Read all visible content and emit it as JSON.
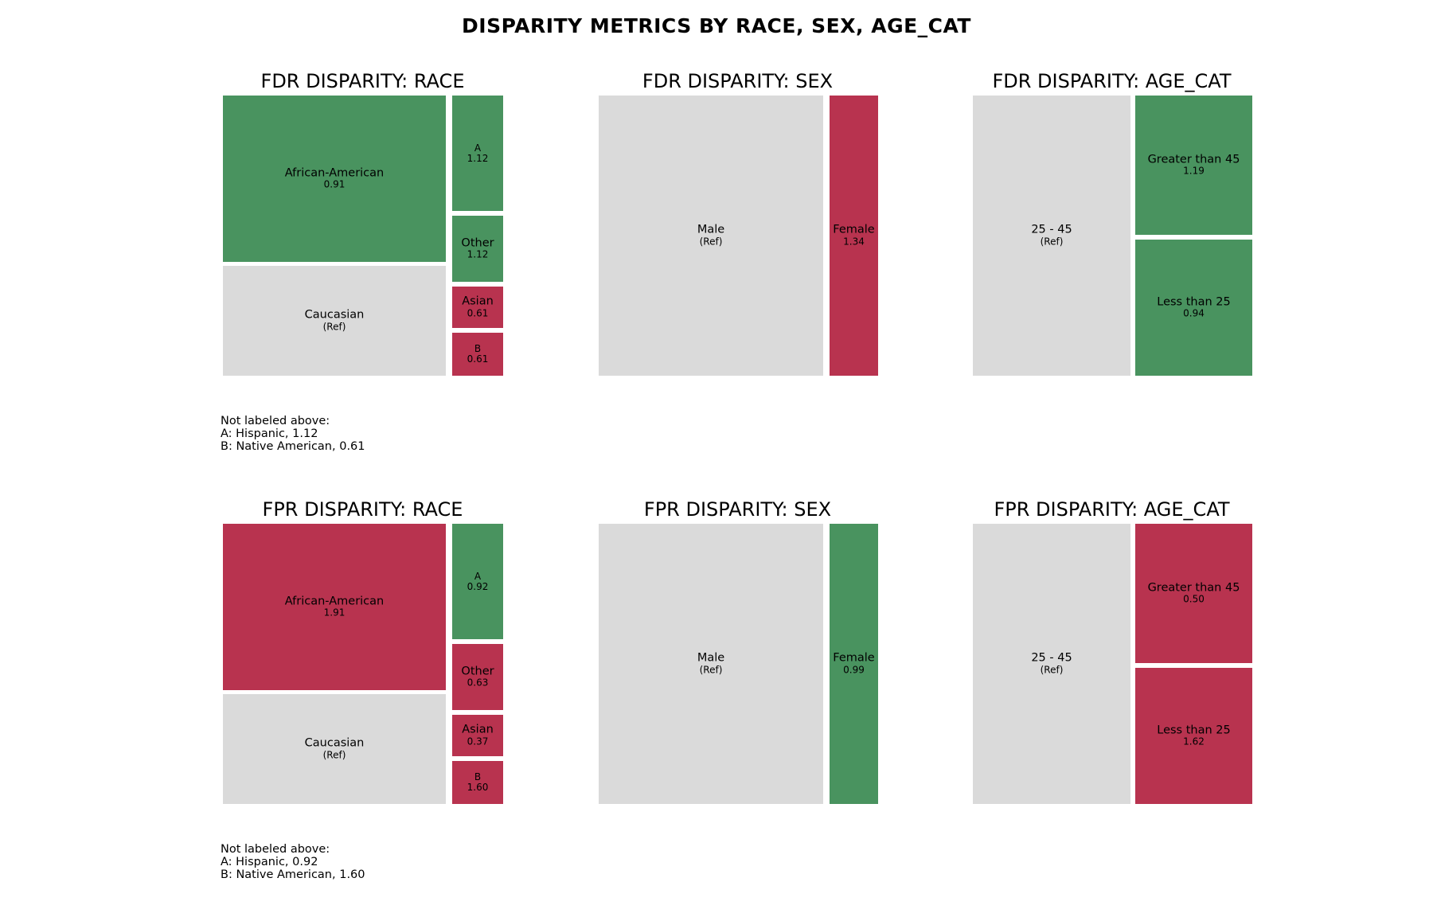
{
  "title": "DISPARITY METRICS BY RACE, SEX, AGE_CAT",
  "colors": {
    "reference": "#dadada",
    "better": "#49935f",
    "worse": "#b8334f",
    "text": "#000000"
  },
  "chart_data": [
    {
      "type": "treemap",
      "title": "FDR DISPARITY: RACE",
      "tiles": [
        {
          "label": "African-American",
          "value_label": "0.91",
          "value": 0.91,
          "status": "better"
        },
        {
          "label": "Caucasian",
          "value_label": "(Ref)",
          "value": 1.0,
          "status": "reference"
        },
        {
          "label": "A",
          "value_label": "1.12",
          "value": 1.12,
          "status": "better"
        },
        {
          "label": "Other",
          "value_label": "1.12",
          "value": 1.12,
          "status": "better"
        },
        {
          "label": "Asian",
          "value_label": "0.61",
          "value": 0.61,
          "status": "worse"
        },
        {
          "label": "B",
          "value_label": "0.61",
          "value": 0.61,
          "status": "worse"
        }
      ],
      "note": [
        "Not labeled above:",
        "A: Hispanic, 1.12",
        "B: Native American, 0.61"
      ]
    },
    {
      "type": "treemap",
      "title": "FDR DISPARITY: SEX",
      "tiles": [
        {
          "label": "Male",
          "value_label": "(Ref)",
          "value": 1.0,
          "status": "reference"
        },
        {
          "label": "Female",
          "value_label": "1.34",
          "value": 1.34,
          "status": "worse"
        }
      ],
      "note": []
    },
    {
      "type": "treemap",
      "title": "FDR DISPARITY: AGE_CAT",
      "tiles": [
        {
          "label": "25 - 45",
          "value_label": "(Ref)",
          "value": 1.0,
          "status": "reference"
        },
        {
          "label": "Greater than 45",
          "value_label": "1.19",
          "value": 1.19,
          "status": "better"
        },
        {
          "label": "Less than 25",
          "value_label": "0.94",
          "value": 0.94,
          "status": "better"
        }
      ],
      "note": []
    },
    {
      "type": "treemap",
      "title": "FPR DISPARITY: RACE",
      "tiles": [
        {
          "label": "African-American",
          "value_label": "1.91",
          "value": 1.91,
          "status": "worse"
        },
        {
          "label": "Caucasian",
          "value_label": "(Ref)",
          "value": 1.0,
          "status": "reference"
        },
        {
          "label": "A",
          "value_label": "0.92",
          "value": 0.92,
          "status": "better"
        },
        {
          "label": "Other",
          "value_label": "0.63",
          "value": 0.63,
          "status": "worse"
        },
        {
          "label": "Asian",
          "value_label": "0.37",
          "value": 0.37,
          "status": "worse"
        },
        {
          "label": "B",
          "value_label": "1.60",
          "value": 1.6,
          "status": "worse"
        }
      ],
      "note": [
        "Not labeled above:",
        "A: Hispanic, 0.92",
        "B: Native American, 1.60"
      ]
    },
    {
      "type": "treemap",
      "title": "FPR DISPARITY: SEX",
      "tiles": [
        {
          "label": "Male",
          "value_label": "(Ref)",
          "value": 1.0,
          "status": "reference"
        },
        {
          "label": "Female",
          "value_label": "0.99",
          "value": 0.99,
          "status": "better"
        }
      ],
      "note": []
    },
    {
      "type": "treemap",
      "title": "FPR DISPARITY: AGE_CAT",
      "tiles": [
        {
          "label": "25 - 45",
          "value_label": "(Ref)",
          "value": 1.0,
          "status": "reference"
        },
        {
          "label": "Greater than 45",
          "value_label": "0.50",
          "value": 0.5,
          "status": "worse"
        },
        {
          "label": "Less than 25",
          "value_label": "1.62",
          "value": 1.62,
          "status": "worse"
        }
      ],
      "note": []
    }
  ]
}
